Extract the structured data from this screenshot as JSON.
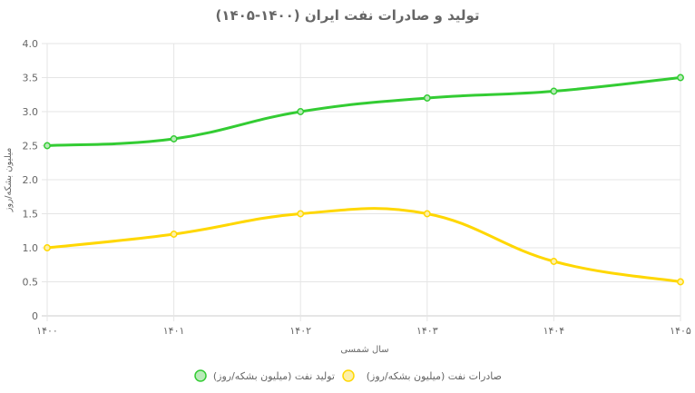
{
  "chart_data": {
    "type": "line",
    "title": "تولید و صادرات نفت ایران (۱۴۰۰-۱۴۰۵)",
    "xlabel": "سال شمسی",
    "ylabel": "میلیون بشکه/روز",
    "categories": [
      "۱۴۰۰",
      "۱۴۰۱",
      "۱۴۰۲",
      "۱۴۰۳",
      "۱۴۰۴",
      "۱۴۰۵"
    ],
    "y_ticks": [
      "0",
      "0.5",
      "1.0",
      "1.5",
      "2.0",
      "2.5",
      "3.0",
      "3.5",
      "4.0"
    ],
    "ylim": [
      0,
      4
    ],
    "grid": true,
    "legend_position": "bottom",
    "series": [
      {
        "name": "تولید نفت (میلیون بشکه/روز)",
        "values": [
          2.5,
          2.6,
          3.0,
          3.2,
          3.3,
          3.5
        ],
        "color": "#33cc33",
        "fill": "#b9eab9"
      },
      {
        "name": "صادرات نفت (میلیون بشکه/روز)",
        "values": [
          1.0,
          1.2,
          1.5,
          1.5,
          0.8,
          0.5
        ],
        "color": "#ffd700",
        "fill": "#fdf0a8"
      }
    ]
  }
}
